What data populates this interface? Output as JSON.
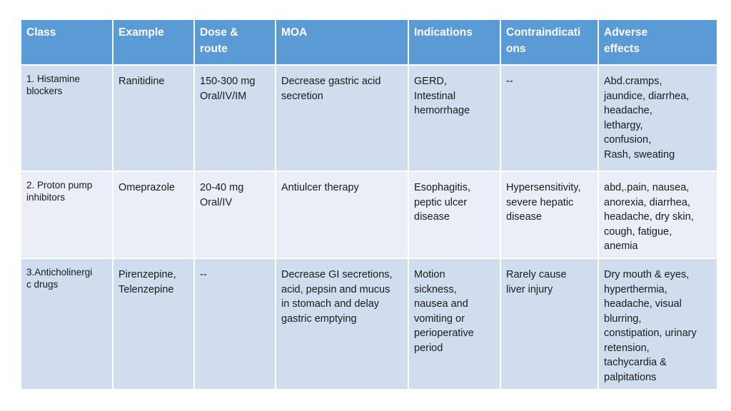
{
  "table": {
    "headers": [
      "Class",
      "Example",
      "Dose &\nroute",
      "MOA",
      "Indications",
      "Contraindicati\nons",
      "Adverse\neffects"
    ],
    "rows": [
      {
        "class": "1. Histamine\nblockers",
        "example": "Ranitidine",
        "dose_route": "150-300 mg\nOral/IV/IM",
        "moa": "Decrease gastric acid\nsecretion",
        "indications": "GERD,\nIntestinal\nhemorrhage",
        "contraindications": "--",
        "adverse_effects": "Abd.cramps,\njaundice, diarrhea,\nheadache,\nlethargy,\nconfusion,\nRash, sweating"
      },
      {
        "class": "2. Proton pump\ninhibitors",
        "example": "Omeprazole",
        "dose_route": "20-40 mg\nOral/IV",
        "moa": "Antiulcer therapy",
        "indications": "Esophagitis,\npeptic ulcer\ndisease",
        "contraindications": "Hypersensitivity,\nsevere hepatic\ndisease",
        "adverse_effects": "abd,.pain, nausea,\nanorexia, diarrhea,\nheadache, dry skin,\ncough, fatigue,\nanemia"
      },
      {
        "class": "3.Anticholinergi\nc drugs",
        "example": "Pirenzepine,\nTelenzepine",
        "dose_route": "--",
        "moa": "Decrease GI secretions,\nacid, pepsin and mucus\nin stomach and delay\ngastric emptying",
        "indications": "Motion\nsickness,\nnausea and\nvomiting or\nperioperative\nperiod",
        "contraindications": "Rarely cause\nliver injury",
        "adverse_effects": "Dry mouth & eyes,\nhyperthermia,\nheadache, visual\nblurring,\nconstipation, urinary\nretension,\ntachycardia &\npalpitations"
      }
    ],
    "colors": {
      "header_bg": "#5b9bd5",
      "row_odd_bg": "#cfddee",
      "row_even_bg": "#e9eef7",
      "header_text": "#ffffff"
    }
  }
}
